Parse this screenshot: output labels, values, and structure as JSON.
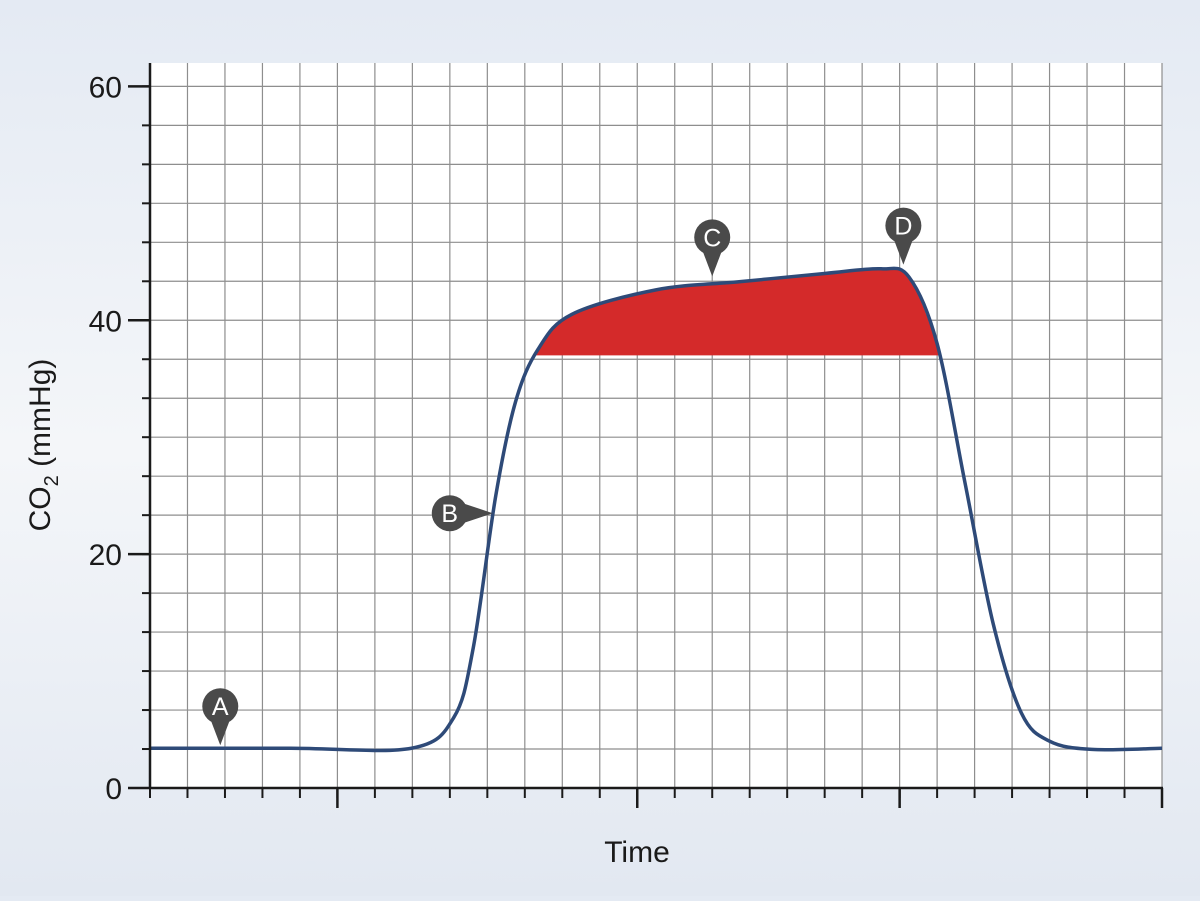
{
  "chart_data": {
    "type": "line",
    "xlabel": "Time",
    "ylabel_main": "CO",
    "ylabel_sub": "2",
    "ylabel_unit": " (mmHg)",
    "ylim": [
      0,
      62
    ],
    "y_ticks": [
      0,
      20,
      40,
      60
    ],
    "y_tick_labels": [
      "0",
      "20",
      "40",
      "60"
    ],
    "x_tick_labels_shown": false,
    "grid": true,
    "shaded_region": {
      "color": "#d42a2a",
      "lower_bound_co2": 37
    },
    "series": [
      {
        "color": "#2e4a78",
        "points": [
          [
            0,
            3.4
          ],
          [
            5,
            3.4
          ],
          [
            9.3,
            3.4
          ],
          [
            10.8,
            6
          ],
          [
            11.5,
            12
          ],
          [
            12.3,
            25
          ],
          [
            13,
            33
          ],
          [
            13.8,
            37.5
          ],
          [
            15,
            40.5
          ],
          [
            18,
            42.6
          ],
          [
            21,
            43.3
          ],
          [
            24,
            44
          ],
          [
            26,
            44.4
          ],
          [
            27,
            43.7
          ],
          [
            28,
            38
          ],
          [
            29,
            26
          ],
          [
            30,
            14
          ],
          [
            31,
            6.4
          ],
          [
            32,
            4
          ],
          [
            33.5,
            3.3
          ],
          [
            36,
            3.4
          ]
        ]
      }
    ],
    "xlim": [
      0,
      36
    ],
    "annotations": [
      {
        "label": "A",
        "x": 2.5,
        "y": 3.4,
        "pointer": "down"
      },
      {
        "label": "B",
        "x": 12.3,
        "y": 23.5,
        "pointer": "right"
      },
      {
        "label": "C",
        "x": 20.0,
        "y": 43.5,
        "pointer": "down"
      },
      {
        "label": "D",
        "x": 26.8,
        "y": 44.5,
        "pointer": "down"
      }
    ]
  }
}
